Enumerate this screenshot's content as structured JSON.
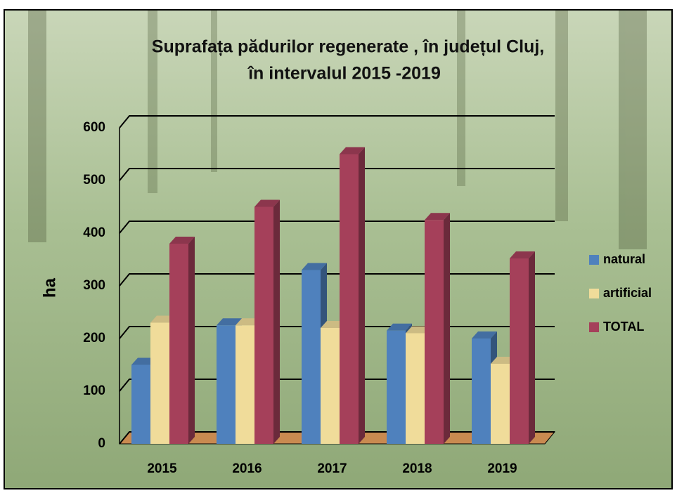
{
  "chart_data": {
    "type": "bar3d",
    "title": "Suprafața pădurilor regenerate , în județul Cluj,",
    "subtitle": "în intervalul 2015 -2019",
    "y_label": "ha",
    "categories": [
      "2015",
      "2016",
      "2017",
      "2018",
      "2019"
    ],
    "series": [
      {
        "name": "natural",
        "color": "#4f81bd",
        "values": [
          150,
          225,
          330,
          215,
          200
        ]
      },
      {
        "name": "artificial",
        "color": "#f0dc9a",
        "values": [
          230,
          225,
          220,
          210,
          152
        ]
      },
      {
        "name": "TOTAL",
        "color": "#a5405a",
        "values": [
          380,
          450,
          550,
          425,
          352
        ]
      }
    ],
    "ylim": [
      0,
      600
    ],
    "yticks": [
      0,
      100,
      200,
      300,
      400,
      500,
      600
    ],
    "grid": true,
    "legend": "right"
  }
}
